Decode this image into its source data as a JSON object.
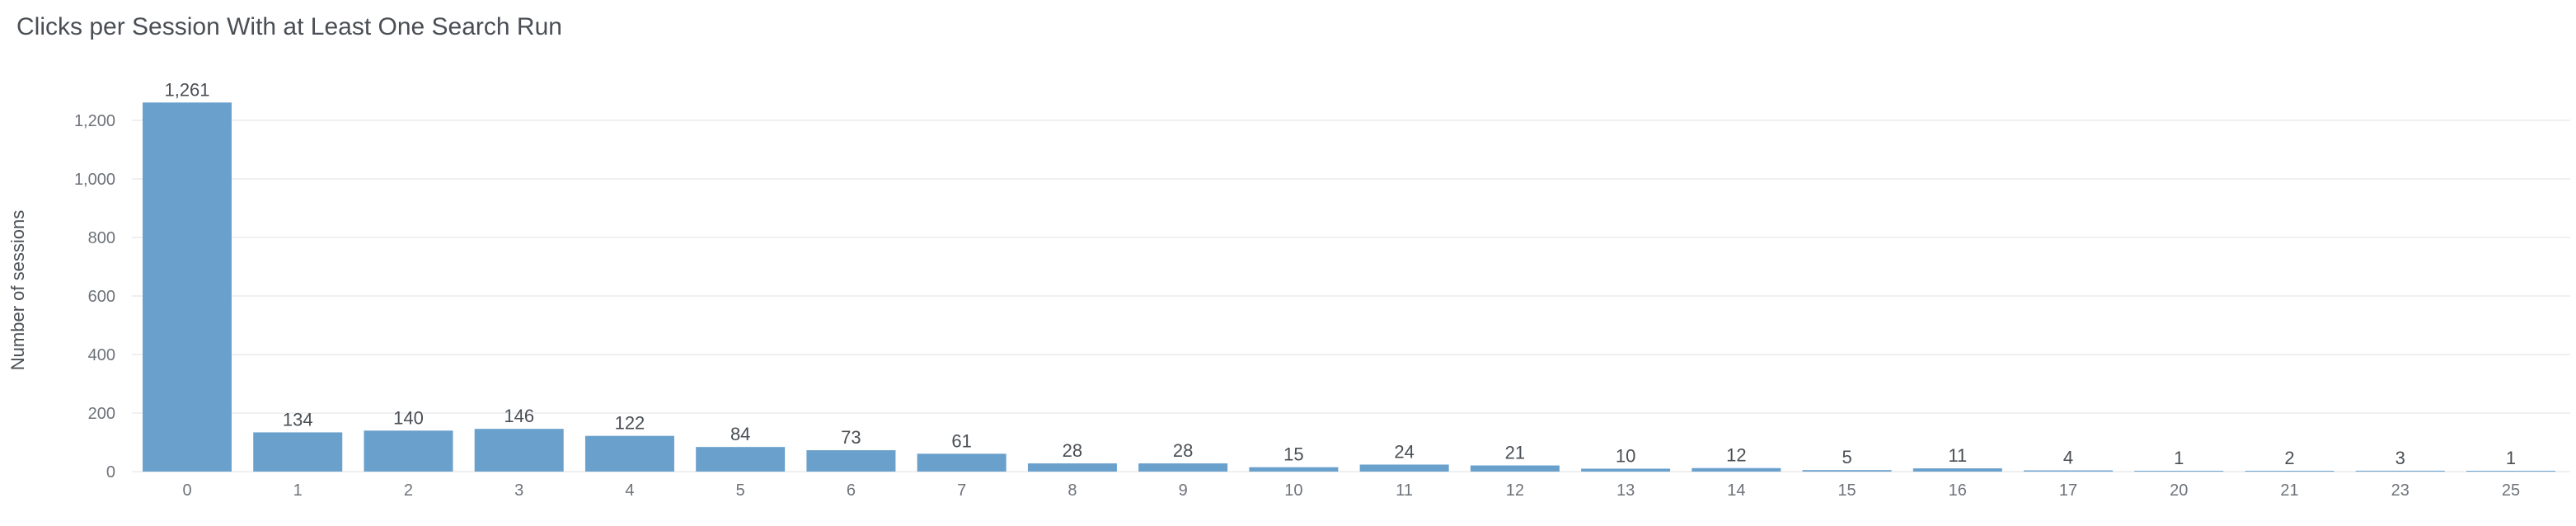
{
  "chart_data": {
    "type": "bar",
    "title": "Clicks per Session With at Least One Search Run",
    "xlabel": "",
    "ylabel": "Number of sessions",
    "categories": [
      "0",
      "1",
      "2",
      "3",
      "4",
      "5",
      "6",
      "7",
      "8",
      "9",
      "10",
      "11",
      "12",
      "13",
      "14",
      "15",
      "16",
      "17",
      "20",
      "21",
      "23",
      "25"
    ],
    "values": [
      1261,
      134,
      140,
      146,
      122,
      84,
      73,
      61,
      28,
      28,
      15,
      24,
      21,
      10,
      12,
      5,
      11,
      4,
      1,
      2,
      3,
      1
    ],
    "data_labels": [
      "1,261",
      "134",
      "140",
      "146",
      "122",
      "84",
      "73",
      "61",
      "28",
      "28",
      "15",
      "24",
      "21",
      "10",
      "12",
      "5",
      "11",
      "4",
      "1",
      "2",
      "3",
      "1"
    ],
    "yticks": [
      0,
      200,
      400,
      600,
      800,
      1000,
      1200
    ],
    "ytick_labels": [
      "0",
      "200",
      "400",
      "600",
      "800",
      "1,000",
      "1,200"
    ],
    "ylim": [
      0,
      1300
    ],
    "grid": true,
    "legend": "none",
    "bar_color": "#6aa0cc",
    "grid_color": "#ececec"
  }
}
